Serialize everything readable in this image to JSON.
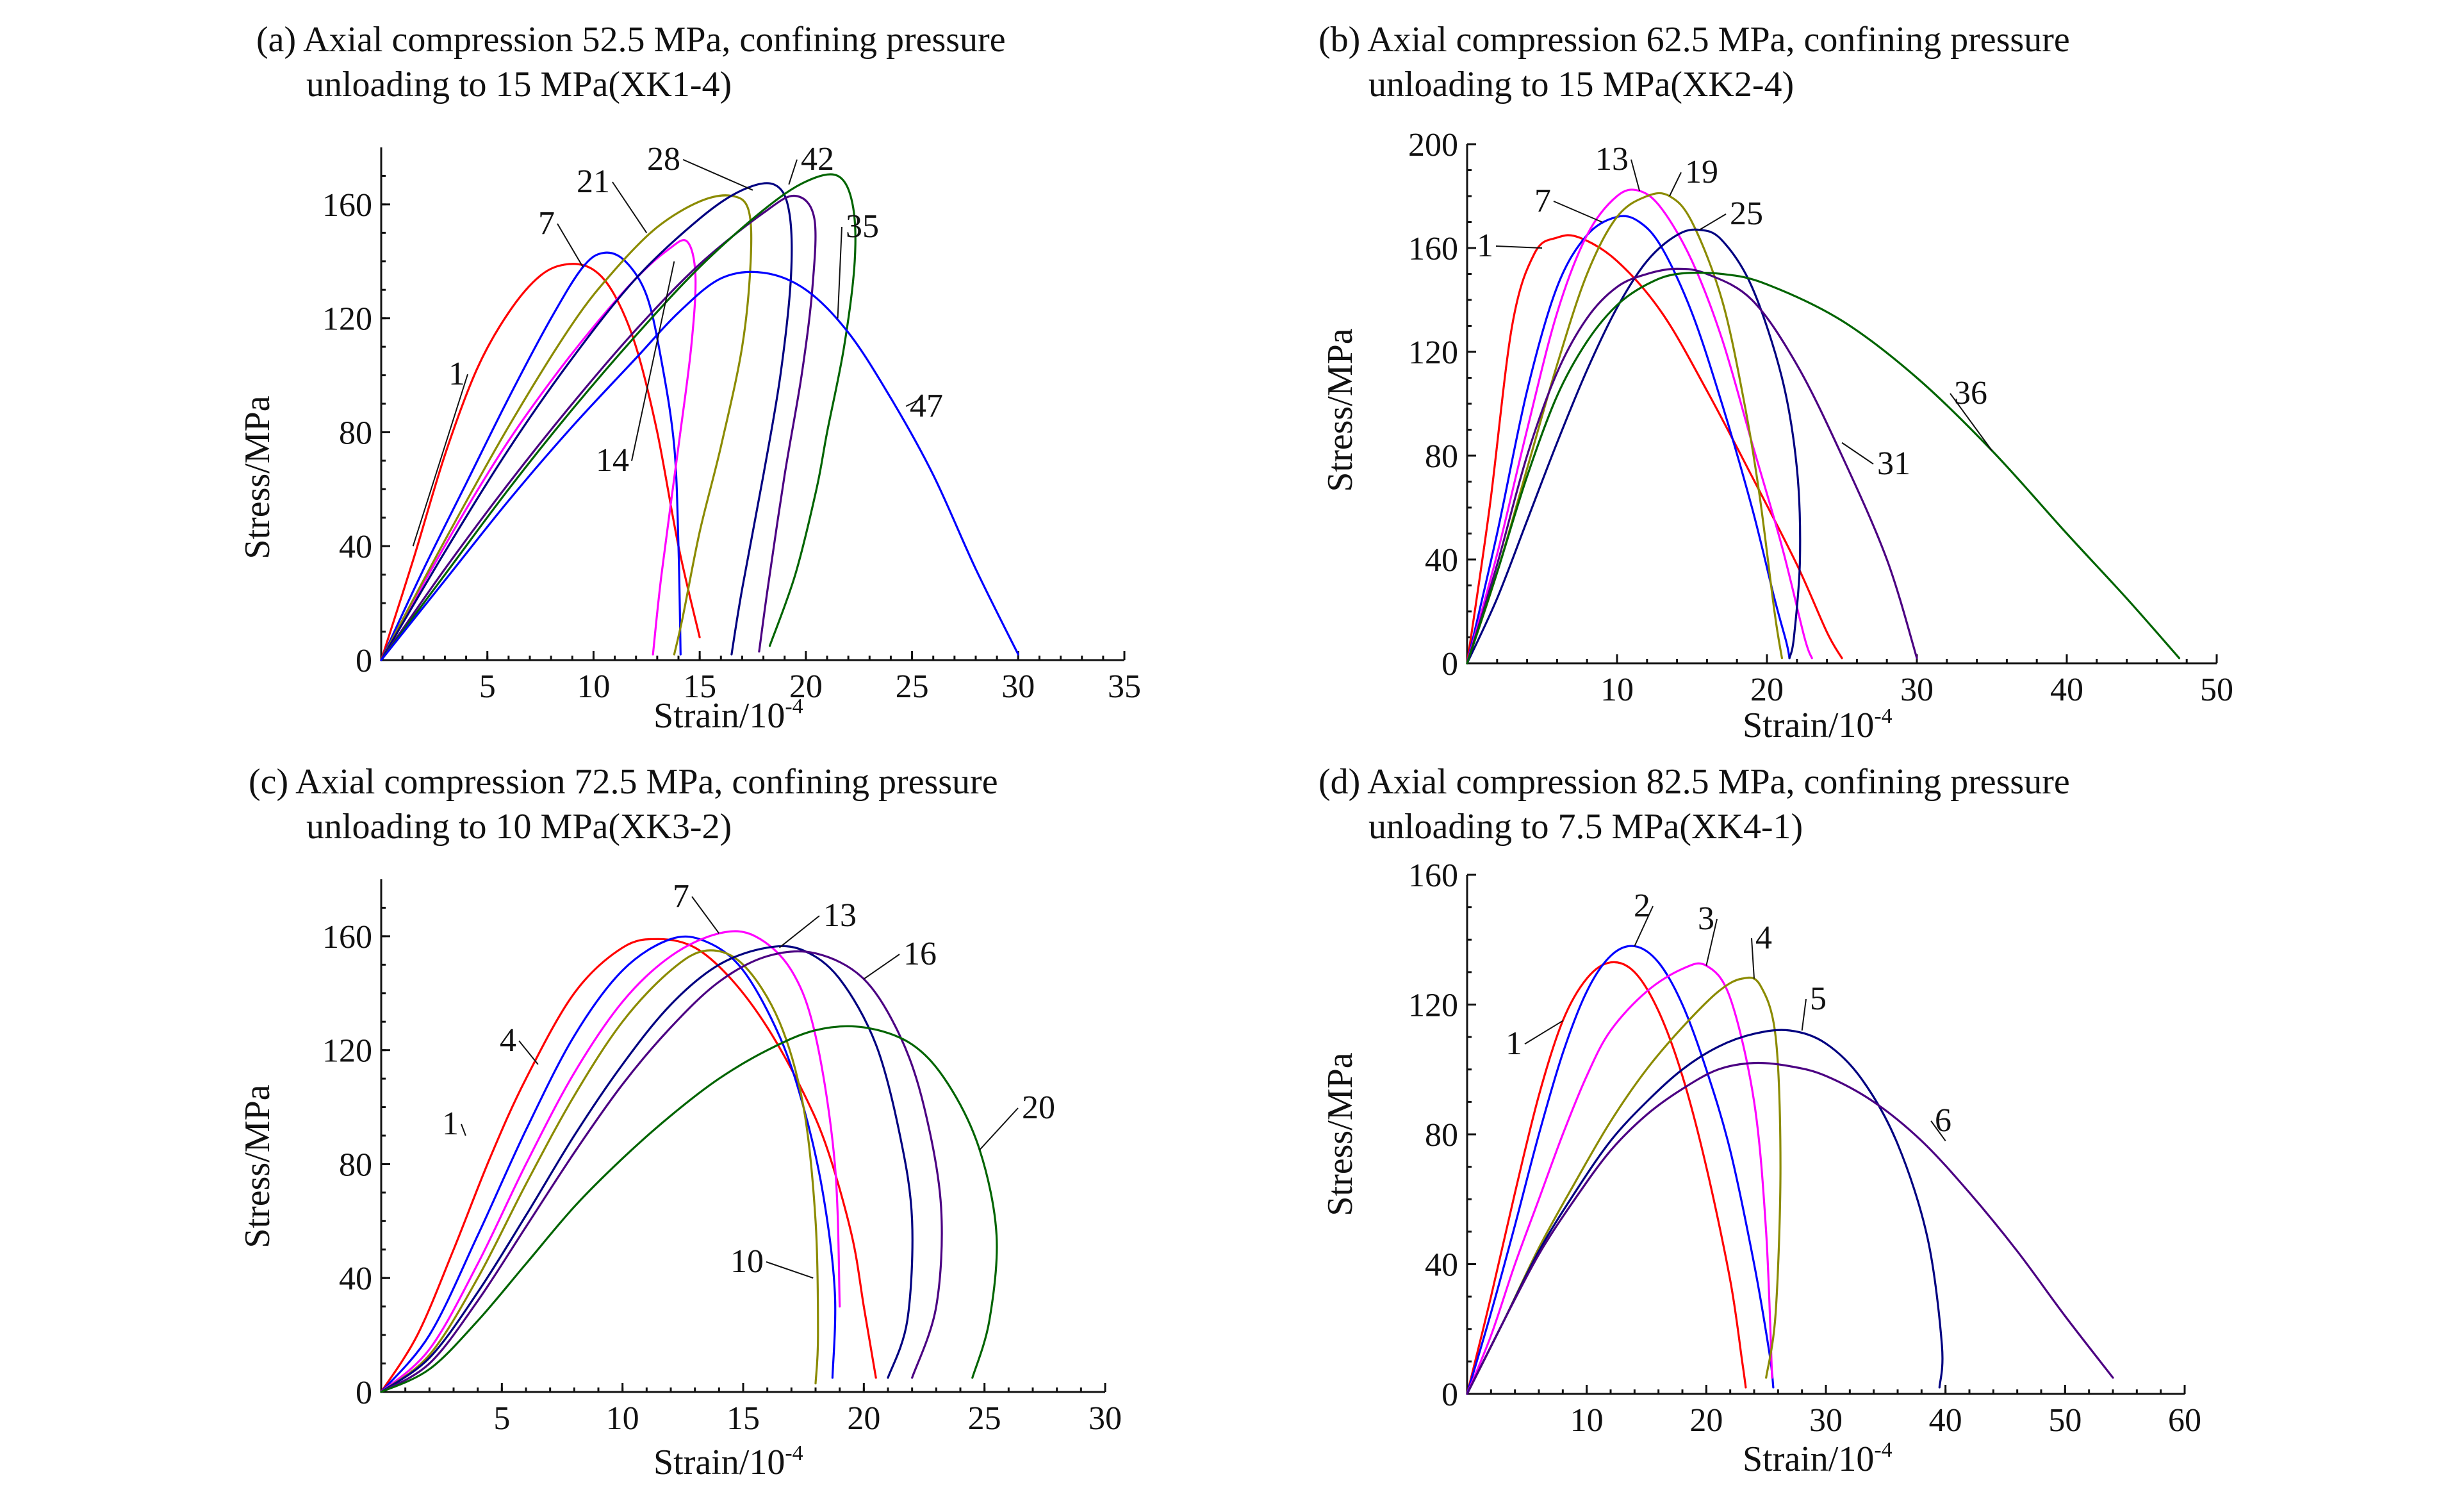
{
  "chart_data": [
    {
      "type": "line",
      "panel": "a",
      "title": [
        "(a) Axial compression 52.5 MPa, confining pressure",
        "unloading to 15 MPa(XK1-4)"
      ],
      "xlabel": "Strain/10",
      "xlabel_sup": "-4",
      "ylabel": "Stress/MPa",
      "xlim": [
        0,
        35
      ],
      "ylim": [
        0,
        180
      ],
      "xticks": [
        "5",
        "10",
        "15",
        "20",
        "25",
        "30",
        "35"
      ],
      "yticks": [
        "0",
        "40",
        "80",
        "120",
        "160"
      ],
      "series": [
        {
          "name": "1",
          "color": "#ff0000",
          "x": [
            0,
            1.5,
            3,
            4.5,
            6,
            7.5,
            8.8,
            10,
            11,
            12,
            13,
            14,
            15
          ],
          "y": [
            0,
            35,
            72,
            102,
            122,
            135,
            139,
            137,
            128,
            110,
            80,
            40,
            8
          ]
        },
        {
          "name": "7",
          "color": "#0000ff",
          "x": [
            0,
            2,
            4,
            6,
            8,
            9.5,
            10.5,
            11.5,
            12.5,
            13.2,
            13.8,
            14,
            14.1
          ],
          "y": [
            0,
            32,
            62,
            92,
            120,
            138,
            143,
            140,
            128,
            105,
            75,
            40,
            2
          ]
        },
        {
          "name": "14",
          "color": "#ff00ff",
          "x": [
            0,
            2,
            4,
            6,
            8,
            10,
            12,
            13.5,
            14.4,
            14.8,
            14.6,
            14,
            13.2,
            12.8
          ],
          "y": [
            0,
            27,
            53,
            77,
            98,
            117,
            134,
            144,
            147,
            135,
            110,
            75,
            30,
            2
          ]
        },
        {
          "name": "21",
          "color": "#8b8b00",
          "x": [
            0,
            3,
            6,
            9,
            11,
            13,
            15,
            16.5,
            17.3,
            17.4,
            17,
            16,
            15,
            14.2,
            13.8
          ],
          "y": [
            0,
            42,
            82,
            118,
            137,
            152,
            161,
            163,
            158,
            140,
            110,
            75,
            45,
            15,
            2
          ]
        },
        {
          "name": "28",
          "color": "#000080",
          "x": [
            0,
            3,
            6,
            9,
            12,
            15,
            17,
            18.5,
            19.2,
            19.3,
            18.8,
            18,
            17,
            16.5
          ],
          "y": [
            0,
            38,
            74,
            106,
            134,
            155,
            165,
            167,
            158,
            135,
            100,
            65,
            25,
            2
          ]
        },
        {
          "name": "35",
          "color": "#4b0082",
          "x": [
            0,
            3,
            6,
            9,
            12,
            15,
            18,
            19.5,
            20.4,
            20.3,
            19.8,
            19,
            18.2,
            17.8
          ],
          "y": [
            0,
            32,
            62,
            90,
            116,
            139,
            157,
            163,
            155,
            130,
            100,
            65,
            25,
            3
          ]
        },
        {
          "name": "42",
          "color": "#006400",
          "x": [
            0,
            3,
            6,
            9,
            12,
            15,
            18,
            20,
            21.5,
            22.2,
            22.3,
            21.8,
            21,
            20.5,
            19.5,
            18.3
          ],
          "y": [
            0,
            30,
            60,
            88,
            114,
            138,
            158,
            168,
            170,
            160,
            140,
            110,
            80,
            60,
            30,
            5
          ]
        },
        {
          "name": "47",
          "color": "#0000ff",
          "x": [
            0,
            3,
            6,
            9,
            12,
            14,
            16,
            18,
            20,
            22,
            24,
            26,
            28,
            30
          ],
          "y": [
            0,
            28,
            56,
            82,
            106,
            122,
            134,
            136,
            130,
            115,
            92,
            65,
            32,
            2
          ]
        }
      ],
      "annotations": [
        "1",
        "7",
        "14",
        "21",
        "28",
        "35",
        "42",
        "47"
      ]
    },
    {
      "type": "line",
      "panel": "b",
      "title": [
        "(b) Axial compression 62.5 MPa, confining pressure",
        "unloading to 15 MPa(XK2-4)"
      ],
      "xlabel": "Strain/10",
      "xlabel_sup": "-4",
      "ylabel": "Stress/MPa",
      "xlim": [
        0,
        50
      ],
      "ylim": [
        0,
        200
      ],
      "xticks": [
        "10",
        "20",
        "30",
        "40",
        "50"
      ],
      "yticks": [
        "0",
        "40",
        "80",
        "120",
        "160",
        "200"
      ],
      "series": [
        {
          "name": "1",
          "color": "#ff0000",
          "x": [
            0,
            1.5,
            3,
            4.5,
            6,
            7.5,
            10,
            13,
            16,
            19,
            22,
            24,
            25
          ],
          "y": [
            0,
            60,
            130,
            158,
            164,
            164,
            155,
            135,
            105,
            72,
            38,
            12,
            2
          ]
        },
        {
          "name": "7",
          "color": "#0000ff",
          "x": [
            0,
            2,
            4,
            6,
            8,
            10,
            11.5,
            13,
            15,
            17,
            19,
            20.5,
            21.3,
            21.5
          ],
          "y": [
            0,
            50,
            105,
            145,
            165,
            172,
            170,
            160,
            135,
            100,
            60,
            25,
            8,
            2
          ]
        },
        {
          "name": "13",
          "color": "#ff00ff",
          "x": [
            0,
            2,
            4,
            6,
            8,
            10,
            11.5,
            13,
            15,
            17,
            19,
            21,
            22.5,
            23
          ],
          "y": [
            0,
            42,
            90,
            135,
            165,
            180,
            182,
            175,
            155,
            125,
            85,
            45,
            10,
            2
          ]
        },
        {
          "name": "19",
          "color": "#8b8b00",
          "x": [
            0,
            2,
            4,
            6,
            8,
            10,
            12,
            13.5,
            15,
            17,
            18.5,
            19.5,
            20.5,
            21
          ],
          "y": [
            0,
            35,
            75,
            115,
            150,
            172,
            180,
            180,
            170,
            140,
            100,
            65,
            20,
            2
          ]
        },
        {
          "name": "25",
          "color": "#000080",
          "x": [
            0,
            2,
            4,
            6,
            8,
            10,
            12,
            14,
            15.5,
            17,
            19,
            21,
            22,
            22.2,
            21.8,
            21.5
          ],
          "y": [
            0,
            25,
            55,
            85,
            113,
            137,
            155,
            165,
            167,
            163,
            145,
            110,
            75,
            40,
            10,
            2
          ]
        },
        {
          "name": "31",
          "color": "#4b0082",
          "x": [
            0,
            2,
            4,
            6,
            8,
            10,
            12,
            14,
            16,
            19,
            22,
            25,
            28,
            30
          ],
          "y": [
            0,
            38,
            80,
            112,
            133,
            145,
            150,
            152,
            150,
            140,
            115,
            80,
            40,
            2
          ]
        },
        {
          "name": "36",
          "color": "#006400",
          "x": [
            0,
            2,
            4,
            6,
            8,
            10,
            12,
            14,
            17,
            20,
            25,
            30,
            35,
            40,
            44,
            47.5
          ],
          "y": [
            0,
            35,
            72,
            103,
            124,
            138,
            146,
            150,
            150,
            146,
            132,
            110,
            82,
            50,
            25,
            2
          ]
        }
      ],
      "annotations": [
        "1",
        "7",
        "13",
        "19",
        "25",
        "31",
        "36"
      ]
    },
    {
      "type": "line",
      "panel": "c",
      "title": [
        "(c) Axial compression 72.5 MPa, confining pressure",
        "unloading to 10 MPa(XK3-2)"
      ],
      "xlabel": "Strain/10",
      "xlabel_sup": "-4",
      "ylabel": "Stress/MPa",
      "xlim": [
        0,
        30
      ],
      "ylim": [
        0,
        180
      ],
      "xticks": [
        "5",
        "10",
        "15",
        "20",
        "25",
        "30"
      ],
      "yticks": [
        "0",
        "40",
        "80",
        "120",
        "160"
      ],
      "series": [
        {
          "name": "1",
          "color": "#ff0000",
          "x": [
            0,
            1.5,
            3,
            4.5,
            6,
            8,
            10,
            11.5,
            13,
            14.5,
            16,
            17.5,
            18.5,
            19.5,
            20,
            20.5
          ],
          "y": [
            0,
            20,
            50,
            82,
            110,
            140,
            156,
            159,
            156,
            145,
            128,
            105,
            85,
            55,
            30,
            5
          ]
        },
        {
          "name": "4",
          "color": "#0000ff",
          "x": [
            0,
            2,
            4,
            6,
            8,
            10,
            12,
            13.5,
            15,
            16.5,
            17.5,
            18.3,
            18.8,
            18.7
          ],
          "y": [
            0,
            20,
            55,
            92,
            125,
            148,
            159,
            158,
            148,
            125,
            100,
            70,
            35,
            5
          ]
        },
        {
          "name": "7",
          "color": "#ff00ff",
          "x": [
            0,
            2,
            4,
            6,
            8,
            10,
            12,
            14,
            15.5,
            17,
            18,
            18.8,
            19
          ],
          "y": [
            0,
            15,
            45,
            80,
            112,
            137,
            153,
            161,
            160,
            148,
            125,
            80,
            30
          ]
        },
        {
          "name": "10",
          "color": "#8b8b00",
          "x": [
            0,
            2,
            4,
            6,
            8,
            10,
            12,
            13.5,
            15,
            16.5,
            17.5,
            18,
            18.1,
            18
          ],
          "y": [
            0,
            13,
            40,
            73,
            104,
            130,
            148,
            155,
            150,
            130,
            100,
            60,
            20,
            3
          ]
        },
        {
          "name": "13",
          "color": "#000080",
          "x": [
            0,
            2,
            4,
            6,
            8,
            10,
            12,
            14,
            16,
            17.5,
            19,
            20.5,
            21.5,
            22,
            21.8,
            21
          ],
          "y": [
            0,
            12,
            35,
            62,
            90,
            115,
            136,
            150,
            156,
            155,
            145,
            122,
            90,
            60,
            25,
            5
          ]
        },
        {
          "name": "16",
          "color": "#4b0082",
          "x": [
            0,
            2,
            4,
            6,
            8,
            10,
            12,
            14,
            16,
            18,
            20,
            21.5,
            22.5,
            23.2,
            23,
            22
          ],
          "y": [
            0,
            10,
            32,
            58,
            84,
            108,
            128,
            144,
            153,
            154,
            145,
            125,
            100,
            65,
            30,
            5
          ]
        },
        {
          "name": "20",
          "color": "#006400",
          "x": [
            0,
            2,
            4,
            6,
            8,
            10,
            12,
            14,
            16,
            18,
            20,
            22,
            23.5,
            24.8,
            25.5,
            25.2,
            24.5
          ],
          "y": [
            0,
            8,
            25,
            45,
            65,
            82,
            97,
            110,
            120,
            127,
            128,
            122,
            108,
            85,
            55,
            25,
            5
          ]
        }
      ],
      "annotations": [
        "1",
        "4",
        "7",
        "10",
        "13",
        "16",
        "20"
      ]
    },
    {
      "type": "line",
      "panel": "d",
      "title": [
        "(d) Axial compression 82.5 MPa, confining pressure",
        "unloading to 7.5 MPa(XK4-1)"
      ],
      "xlabel": "Strain/10",
      "xlabel_sup": "-4",
      "ylabel": "Stress/MPa",
      "xlim": [
        0,
        60
      ],
      "ylim": [
        0,
        160
      ],
      "xticks": [
        "10",
        "20",
        "30",
        "40",
        "50",
        "60"
      ],
      "yticks": [
        "0",
        "40",
        "80",
        "120",
        "160"
      ],
      "series": [
        {
          "name": "1",
          "color": "#ff0000",
          "x": [
            0,
            2,
            4,
            6,
            8,
            10,
            12,
            14,
            16,
            18,
            20,
            22,
            23,
            23.3
          ],
          "y": [
            0,
            30,
            62,
            92,
            115,
            128,
            133,
            130,
            118,
            98,
            70,
            35,
            10,
            2
          ]
        },
        {
          "name": "2",
          "color": "#0000ff",
          "x": [
            0,
            2,
            4,
            6,
            8,
            10,
            12,
            14,
            16,
            18,
            20,
            22,
            24,
            25.3,
            25.6
          ],
          "y": [
            0,
            25,
            52,
            80,
            105,
            124,
            135,
            138,
            133,
            120,
            100,
            75,
            40,
            12,
            2
          ]
        },
        {
          "name": "3",
          "color": "#ff00ff",
          "x": [
            0,
            2,
            4,
            6,
            8,
            10,
            12,
            15,
            18,
            20,
            22,
            24,
            25,
            25.5
          ],
          "y": [
            0,
            18,
            40,
            60,
            80,
            98,
            112,
            124,
            131,
            132,
            122,
            90,
            50,
            5
          ]
        },
        {
          "name": "4",
          "color": "#8b8b00",
          "x": [
            0,
            3,
            6,
            9,
            12,
            15,
            18,
            21,
            23,
            24.5,
            25.8,
            26.2,
            25.8,
            25
          ],
          "y": [
            0,
            22,
            45,
            65,
            84,
            100,
            113,
            124,
            128,
            126,
            110,
            70,
            25,
            5
          ]
        },
        {
          "name": "5",
          "color": "#000080",
          "x": [
            0,
            3,
            6,
            9,
            12,
            15,
            18,
            21,
            24,
            27,
            30,
            33,
            36,
            38.5,
            39.7,
            39.5
          ],
          "y": [
            0,
            22,
            44,
            62,
            78,
            90,
            100,
            107,
            111,
            112,
            108,
            97,
            77,
            48,
            15,
            2
          ]
        },
        {
          "name": "6",
          "color": "#4b0082",
          "x": [
            0,
            3,
            6,
            9,
            12,
            15,
            18,
            21,
            24,
            27,
            30,
            34,
            38,
            42,
            46,
            50,
            54
          ],
          "y": [
            0,
            22,
            43,
            60,
            75,
            86,
            94,
            100,
            102,
            101,
            98,
            90,
            78,
            62,
            44,
            24,
            5
          ]
        }
      ],
      "annotations": [
        "1",
        "2",
        "3",
        "4",
        "5",
        "6"
      ]
    }
  ]
}
